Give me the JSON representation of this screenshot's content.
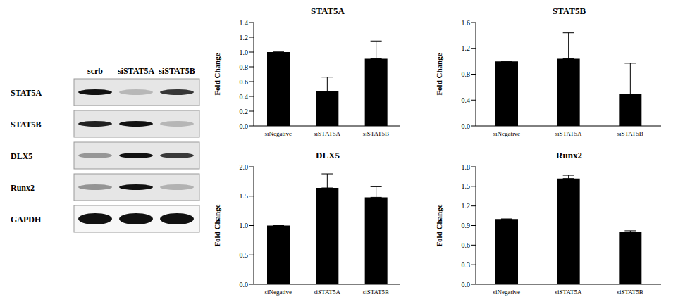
{
  "chart_data": [
    {
      "type": "bar",
      "title": "STAT5A",
      "y_label": "Fold   Change",
      "categories": [
        "siNegative",
        "siSTAT5A",
        "siSTAT5B"
      ],
      "values": [
        1.0,
        0.47,
        0.91
      ],
      "errors": [
        0,
        0.19,
        0.24
      ],
      "color": "#000000",
      "ylim": [
        0,
        1.4
      ],
      "yticks": [
        {
          "value": 0,
          "label": "0.0"
        },
        0.2,
        0.4,
        0.6,
        0.8,
        {
          "value": 1,
          "label": "1.0"
        },
        1.2,
        1.4
      ],
      "grid": false
    },
    {
      "type": "bar",
      "title": "STAT5B",
      "y_label": "Fold   Change",
      "categories": [
        "siNegative",
        "siSTAT5A",
        "siSTAT5B"
      ],
      "values": [
        1.0,
        1.04,
        0.49
      ],
      "errors": [
        0,
        0.4,
        0.48
      ],
      "color": "#000000",
      "ylim": [
        0,
        1.6
      ],
      "yticks": [
        {
          "value": 0,
          "label": "0.0"
        },
        0.4,
        0.8,
        1.2,
        1.6
      ],
      "grid": false
    },
    {
      "type": "bar",
      "title": "DLX5",
      "y_label": "Fold   Change",
      "categories": [
        "siNegative",
        "siSTAT5A",
        "siSTAT5B"
      ],
      "values": [
        1.0,
        1.64,
        1.48
      ],
      "errors": [
        0,
        0.24,
        0.18
      ],
      "color": "#000000",
      "ylim": [
        0,
        2.0
      ],
      "yticks": [
        {
          "value": 0,
          "label": "0.0"
        },
        0.5,
        {
          "value": 1,
          "label": "1.0"
        },
        1.5,
        {
          "value": 2,
          "label": "2.0"
        }
      ],
      "grid": false
    },
    {
      "type": "bar",
      "title": "Runx2",
      "y_label": "Fold   Change",
      "categories": [
        "siNegative",
        "siSTAT5A",
        "siSTAT5B"
      ],
      "values": [
        1.0,
        1.62,
        0.8
      ],
      "errors": [
        0,
        0.05,
        0.02
      ],
      "color": "#000000",
      "ylim": [
        0,
        1.8
      ],
      "yticks": [
        {
          "value": 0,
          "label": "0.0"
        },
        0.3,
        0.6,
        0.9,
        1.2,
        1.5,
        1.8
      ],
      "grid": false
    }
  ],
  "blot": {
    "lanes": [
      "scrb",
      "siSTAT5A",
      "siSTAT5B"
    ],
    "rows": [
      "STAT5A",
      "STAT5B",
      "DLX5",
      "Runx2",
      "GAPDH"
    ]
  }
}
